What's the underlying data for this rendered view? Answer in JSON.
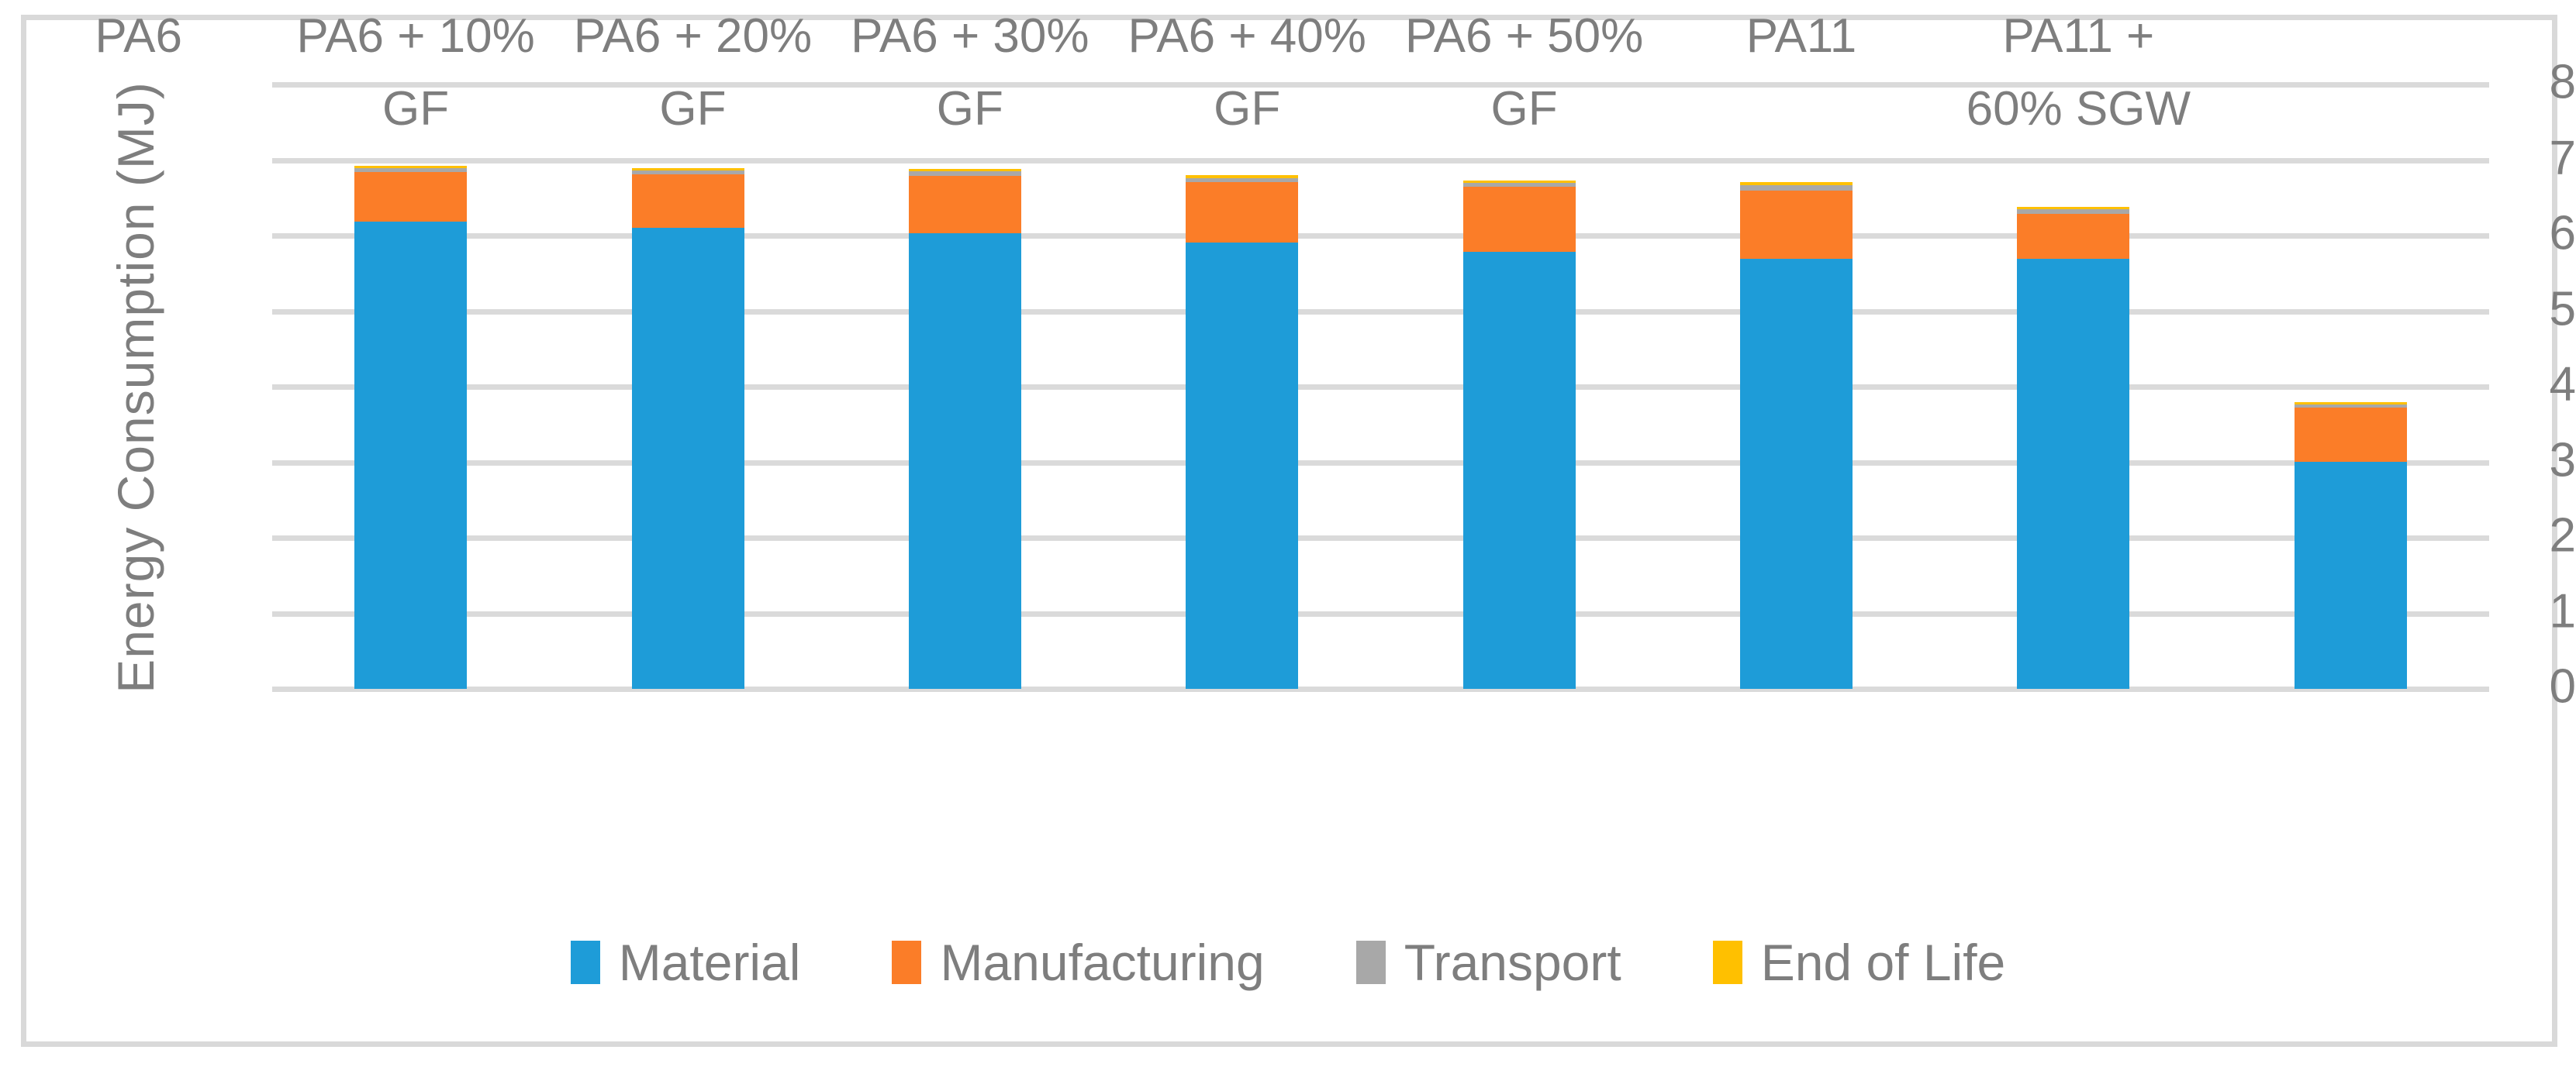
{
  "chart_data": {
    "type": "bar",
    "stacked": true,
    "title": "",
    "xlabel": "",
    "ylabel": "Energy Consumption (MJ)",
    "ylim": [
      0,
      8
    ],
    "ytick_step": 1,
    "ytick_labels": [
      "0",
      "1",
      "2",
      "3",
      "4",
      "5",
      "6",
      "7",
      "8"
    ],
    "grid": true,
    "legend_position": "bottom",
    "categories": [
      "PA6",
      "PA6 + 10% GF",
      "PA6 + 20% GF",
      "PA6 + 30% GF",
      "PA6 + 40% GF",
      "PA6 + 50% GF",
      "PA11",
      "PA11 + 60% SGW"
    ],
    "category_label_lines": [
      [
        "PA6"
      ],
      [
        "PA6 + 10%",
        "GF"
      ],
      [
        "PA6 + 20%",
        "GF"
      ],
      [
        "PA6 + 30%",
        "GF"
      ],
      [
        "PA6 + 40%",
        "GF"
      ],
      [
        "PA6 + 50%",
        "GF"
      ],
      [
        "PA11"
      ],
      [
        "PA11 +",
        "60% SGW"
      ]
    ],
    "series": [
      {
        "name": "Material",
        "color": "#1e9cd8",
        "values": [
          6.18,
          6.1,
          6.03,
          5.91,
          5.78,
          5.69,
          5.69,
          3.01
        ]
      },
      {
        "name": "Manufacturing",
        "color": "#fb7d28",
        "values": [
          0.66,
          0.71,
          0.76,
          0.8,
          0.87,
          0.91,
          0.6,
          0.71
        ]
      },
      {
        "name": "Transport",
        "color": "#a8a8a8",
        "values": [
          0.05,
          0.05,
          0.06,
          0.05,
          0.05,
          0.07,
          0.06,
          0.04
        ]
      },
      {
        "name": "End of Life",
        "color": "#ffc000",
        "values": [
          0.03,
          0.03,
          0.03,
          0.04,
          0.03,
          0.04,
          0.03,
          0.04
        ]
      }
    ]
  },
  "colors": {
    "gridline": "#dadada",
    "chart_border": "#d9d9d9",
    "axis_text": "#7e7e7e",
    "background": "#ffffff"
  }
}
